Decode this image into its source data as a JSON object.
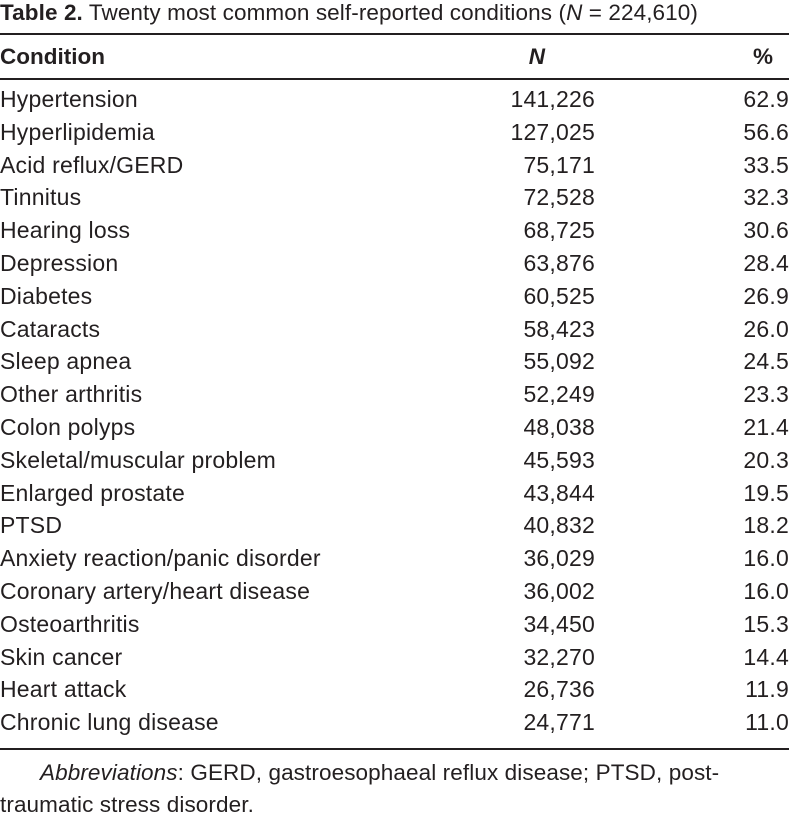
{
  "caption": {
    "label": "Table 2.",
    "text_before": " Twenty most common self-reported conditions (",
    "n_symbol": "N",
    "text_after": " = 224,610)"
  },
  "headers": {
    "condition": "Condition",
    "n": "N",
    "percent": "%"
  },
  "rows": [
    {
      "condition": "Hypertension",
      "n": "141,226",
      "pct": "62.9"
    },
    {
      "condition": "Hyperlipidemia",
      "n": "127,025",
      "pct": "56.6"
    },
    {
      "condition": "Acid reflux/GERD",
      "n": "75,171",
      "pct": "33.5"
    },
    {
      "condition": "Tinnitus",
      "n": "72,528",
      "pct": "32.3"
    },
    {
      "condition": "Hearing loss",
      "n": "68,725",
      "pct": "30.6"
    },
    {
      "condition": "Depression",
      "n": "63,876",
      "pct": "28.4"
    },
    {
      "condition": "Diabetes",
      "n": "60,525",
      "pct": "26.9"
    },
    {
      "condition": "Cataracts",
      "n": "58,423",
      "pct": "26.0"
    },
    {
      "condition": "Sleep apnea",
      "n": "55,092",
      "pct": "24.5"
    },
    {
      "condition": "Other arthritis",
      "n": "52,249",
      "pct": "23.3"
    },
    {
      "condition": "Colon polyps",
      "n": "48,038",
      "pct": "21.4"
    },
    {
      "condition": "Skeletal/muscular problem",
      "n": "45,593",
      "pct": "20.3"
    },
    {
      "condition": "Enlarged prostate",
      "n": "43,844",
      "pct": "19.5"
    },
    {
      "condition": "PTSD",
      "n": "40,832",
      "pct": "18.2"
    },
    {
      "condition": "Anxiety reaction/panic disorder",
      "n": "36,029",
      "pct": "16.0"
    },
    {
      "condition": "Coronary artery/heart disease",
      "n": "36,002",
      "pct": "16.0"
    },
    {
      "condition": "Osteoarthritis",
      "n": "34,450",
      "pct": "15.3"
    },
    {
      "condition": "Skin cancer",
      "n": "32,270",
      "pct": "14.4"
    },
    {
      "condition": "Heart attack",
      "n": "26,736",
      "pct": "11.9"
    },
    {
      "condition": "Chronic lung disease",
      "n": "24,771",
      "pct": "11.0"
    }
  ],
  "footnote": {
    "label": "Abbreviations",
    "text": ": GERD, gastroesophaeal reflux disease; PTSD, post-traumatic stress disorder."
  }
}
